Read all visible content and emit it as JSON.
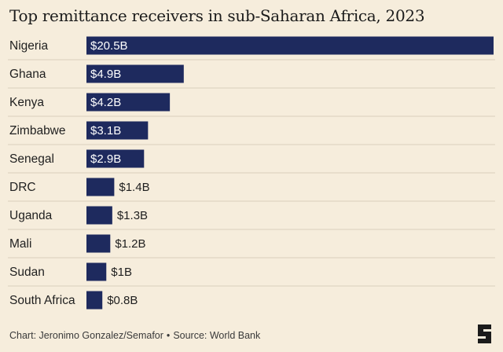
{
  "chart_data": {
    "type": "bar",
    "orientation": "horizontal",
    "title": "Top remittance receivers in sub-Saharan Africa, 2023",
    "categories": [
      "Nigeria",
      "Ghana",
      "Kenya",
      "Zimbabwe",
      "Senegal",
      "DRC",
      "Uganda",
      "Mali",
      "Sudan",
      "South Africa"
    ],
    "values": [
      20.5,
      4.9,
      4.2,
      3.1,
      2.9,
      1.4,
      1.3,
      1.2,
      1.0,
      0.8
    ],
    "data_labels": [
      "$20.5B",
      "$4.9B",
      "$4.2B",
      "$3.1B",
      "$2.9B",
      "$1.4B",
      "$1.3B",
      "$1.2B",
      "$1B",
      "$0.8B"
    ],
    "xlim": [
      0,
      20.5
    ],
    "grid": false,
    "bar_color": "#1e2a5e"
  },
  "footer": {
    "credit": "Chart: Jeronimo Gonzalez/Semafor",
    "separator": "•",
    "source": "Source: World Bank"
  },
  "logo": {
    "icon": "semafor-s-logo"
  },
  "colors": {
    "background": "#f6eddc",
    "bar": "#1e2a5e",
    "divider": "#d9cfbd"
  }
}
